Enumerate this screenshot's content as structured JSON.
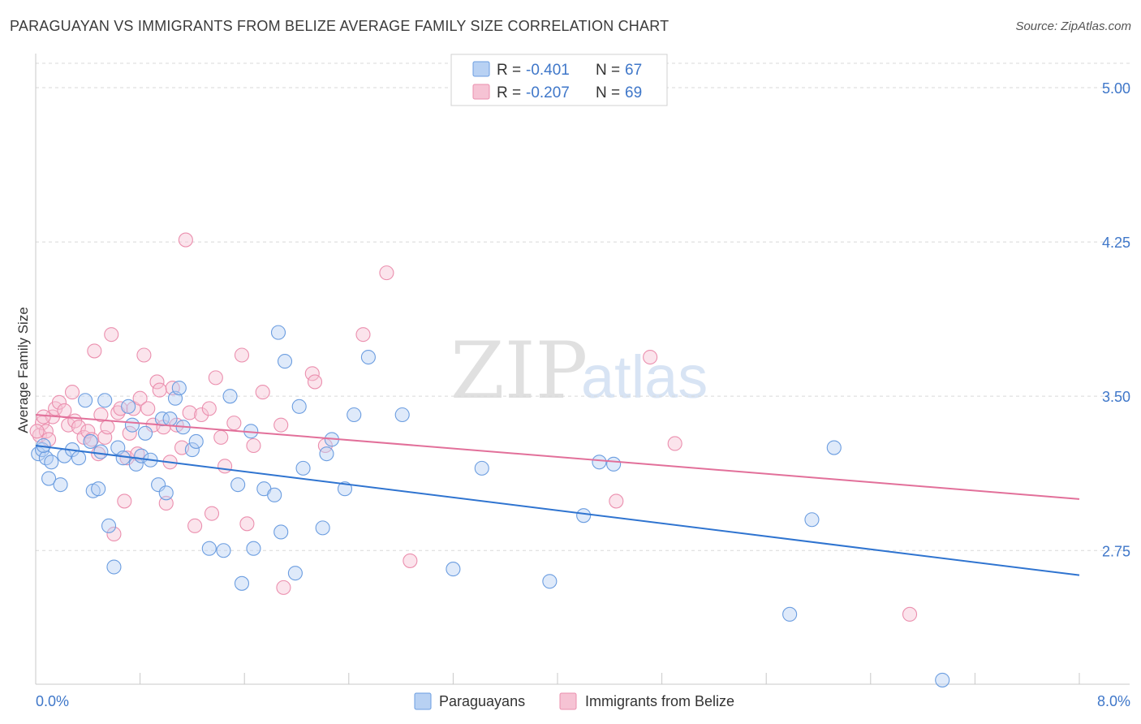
{
  "title": "PARAGUAYAN VS IMMIGRANTS FROM BELIZE AVERAGE FAMILY SIZE CORRELATION CHART",
  "source": "Source: ZipAtlas.com",
  "watermark": {
    "zip": "ZIP",
    "atlas": "atlas"
  },
  "colors": {
    "blue": "#6b9de0",
    "blue_fill": "#b8d1f3",
    "blue_line": "#2f74d0",
    "pink": "#eb8fae",
    "pink_fill": "#f6c3d4",
    "pink_line": "#e2709a",
    "tick_label": "#3f77c9",
    "grid": "#d9d9d9"
  },
  "legend_top": {
    "rows": [
      {
        "r_label": "R =",
        "r_value": "-0.401",
        "n_label": "N =",
        "n_value": "67"
      },
      {
        "r_label": "R =",
        "r_value": "-0.207",
        "n_label": "N =",
        "n_value": "69"
      }
    ]
  },
  "chart_data": {
    "type": "scatter",
    "title": "PARAGUAYAN VS IMMIGRANTS FROM BELIZE AVERAGE FAMILY SIZE CORRELATION CHART",
    "xlabel": "",
    "ylabel": "Average Family Size",
    "xlim": [
      0.0,
      8.0
    ],
    "ylim": [
      2.1,
      5.15
    ],
    "x_tick_labels": [
      "0.0%",
      "8.0%"
    ],
    "y_ticks": [
      2.75,
      3.5,
      4.25,
      5.0
    ],
    "y_tick_labels": [
      "2.75",
      "3.50",
      "4.25",
      "5.00"
    ],
    "grid": true,
    "legend_position": "bottom",
    "series": [
      {
        "name": "Paraguayans",
        "trend": {
          "x": [
            0.0,
            8.0
          ],
          "y": [
            3.26,
            2.63
          ]
        },
        "points": [
          [
            0.02,
            3.22
          ],
          [
            0.05,
            3.24
          ],
          [
            0.08,
            3.2
          ],
          [
            0.12,
            3.18
          ],
          [
            0.1,
            3.1
          ],
          [
            0.19,
            3.07
          ],
          [
            0.22,
            3.21
          ],
          [
            0.28,
            3.24
          ],
          [
            0.33,
            3.2
          ],
          [
            0.38,
            3.48
          ],
          [
            0.42,
            3.28
          ],
          [
            0.44,
            3.04
          ],
          [
            0.48,
            3.05
          ],
          [
            0.5,
            3.23
          ],
          [
            0.53,
            3.48
          ],
          [
            0.56,
            2.87
          ],
          [
            0.6,
            2.67
          ],
          [
            0.63,
            3.25
          ],
          [
            0.67,
            3.2
          ],
          [
            0.71,
            3.45
          ],
          [
            0.74,
            3.36
          ],
          [
            0.77,
            3.17
          ],
          [
            0.81,
            3.21
          ],
          [
            0.84,
            3.32
          ],
          [
            0.88,
            3.19
          ],
          [
            0.94,
            3.07
          ],
          [
            0.97,
            3.39
          ],
          [
            1.0,
            3.03
          ],
          [
            1.03,
            3.39
          ],
          [
            1.07,
            3.49
          ],
          [
            1.1,
            3.54
          ],
          [
            1.13,
            3.35
          ],
          [
            1.2,
            3.24
          ],
          [
            1.23,
            3.28
          ],
          [
            1.33,
            2.76
          ],
          [
            1.44,
            2.75
          ],
          [
            1.49,
            3.5
          ],
          [
            1.55,
            3.07
          ],
          [
            1.58,
            2.59
          ],
          [
            1.65,
            3.33
          ],
          [
            1.67,
            2.76
          ],
          [
            1.75,
            3.05
          ],
          [
            1.83,
            3.02
          ],
          [
            1.86,
            3.81
          ],
          [
            1.88,
            2.84
          ],
          [
            1.91,
            3.67
          ],
          [
            1.99,
            2.64
          ],
          [
            2.02,
            3.45
          ],
          [
            2.05,
            3.15
          ],
          [
            2.2,
            2.86
          ],
          [
            2.23,
            3.22
          ],
          [
            2.27,
            3.29
          ],
          [
            2.37,
            3.05
          ],
          [
            2.44,
            3.41
          ],
          [
            2.55,
            3.69
          ],
          [
            2.81,
            3.41
          ],
          [
            3.2,
            2.66
          ],
          [
            3.42,
            3.15
          ],
          [
            3.94,
            2.6
          ],
          [
            4.2,
            2.92
          ],
          [
            4.32,
            3.18
          ],
          [
            4.43,
            3.17
          ],
          [
            5.95,
            2.9
          ],
          [
            6.12,
            3.25
          ],
          [
            5.78,
            2.44
          ],
          [
            6.95,
            2.12
          ],
          [
            0.06,
            3.26
          ]
        ]
      },
      {
        "name": "Immigrants from Belize",
        "trend": {
          "x": [
            0.0,
            8.0
          ],
          "y": [
            3.41,
            3.0
          ]
        },
        "points": [
          [
            0.03,
            3.31
          ],
          [
            0.05,
            3.37
          ],
          [
            0.08,
            3.33
          ],
          [
            0.1,
            3.29
          ],
          [
            0.13,
            3.4
          ],
          [
            0.15,
            3.44
          ],
          [
            0.18,
            3.47
          ],
          [
            0.22,
            3.43
          ],
          [
            0.25,
            3.36
          ],
          [
            0.28,
            3.52
          ],
          [
            0.3,
            3.38
          ],
          [
            0.33,
            3.35
          ],
          [
            0.37,
            3.3
          ],
          [
            0.4,
            3.33
          ],
          [
            0.43,
            3.29
          ],
          [
            0.45,
            3.72
          ],
          [
            0.48,
            3.22
          ],
          [
            0.5,
            3.41
          ],
          [
            0.53,
            3.3
          ],
          [
            0.55,
            3.35
          ],
          [
            0.58,
            3.8
          ],
          [
            0.6,
            2.83
          ],
          [
            0.63,
            3.42
          ],
          [
            0.65,
            3.44
          ],
          [
            0.68,
            2.99
          ],
          [
            0.7,
            3.2
          ],
          [
            0.72,
            3.32
          ],
          [
            0.75,
            3.44
          ],
          [
            0.78,
            3.22
          ],
          [
            0.8,
            3.49
          ],
          [
            0.83,
            3.7
          ],
          [
            0.86,
            3.44
          ],
          [
            0.9,
            3.36
          ],
          [
            0.93,
            3.57
          ],
          [
            0.95,
            3.53
          ],
          [
            0.98,
            3.35
          ],
          [
            1.0,
            2.98
          ],
          [
            1.03,
            3.18
          ],
          [
            1.05,
            3.54
          ],
          [
            1.08,
            3.36
          ],
          [
            1.12,
            3.25
          ],
          [
            1.15,
            4.26
          ],
          [
            1.18,
            3.42
          ],
          [
            1.22,
            2.87
          ],
          [
            1.27,
            3.41
          ],
          [
            1.33,
            3.44
          ],
          [
            1.35,
            2.93
          ],
          [
            1.38,
            3.59
          ],
          [
            1.42,
            3.3
          ],
          [
            1.45,
            3.16
          ],
          [
            1.52,
            3.37
          ],
          [
            1.58,
            3.7
          ],
          [
            1.62,
            2.88
          ],
          [
            1.67,
            3.26
          ],
          [
            1.74,
            3.52
          ],
          [
            1.88,
            3.36
          ],
          [
            1.9,
            2.57
          ],
          [
            2.12,
            3.61
          ],
          [
            2.14,
            3.57
          ],
          [
            2.22,
            3.26
          ],
          [
            2.51,
            3.8
          ],
          [
            2.69,
            4.1
          ],
          [
            2.87,
            2.7
          ],
          [
            4.45,
            2.99
          ],
          [
            4.71,
            3.69
          ],
          [
            4.9,
            3.27
          ],
          [
            6.7,
            2.44
          ],
          [
            0.01,
            3.33
          ],
          [
            0.06,
            3.4
          ]
        ]
      }
    ]
  },
  "legend_bottom": {
    "items": [
      {
        "label": "Paraguayans"
      },
      {
        "label": "Immigrants from Belize"
      }
    ]
  }
}
